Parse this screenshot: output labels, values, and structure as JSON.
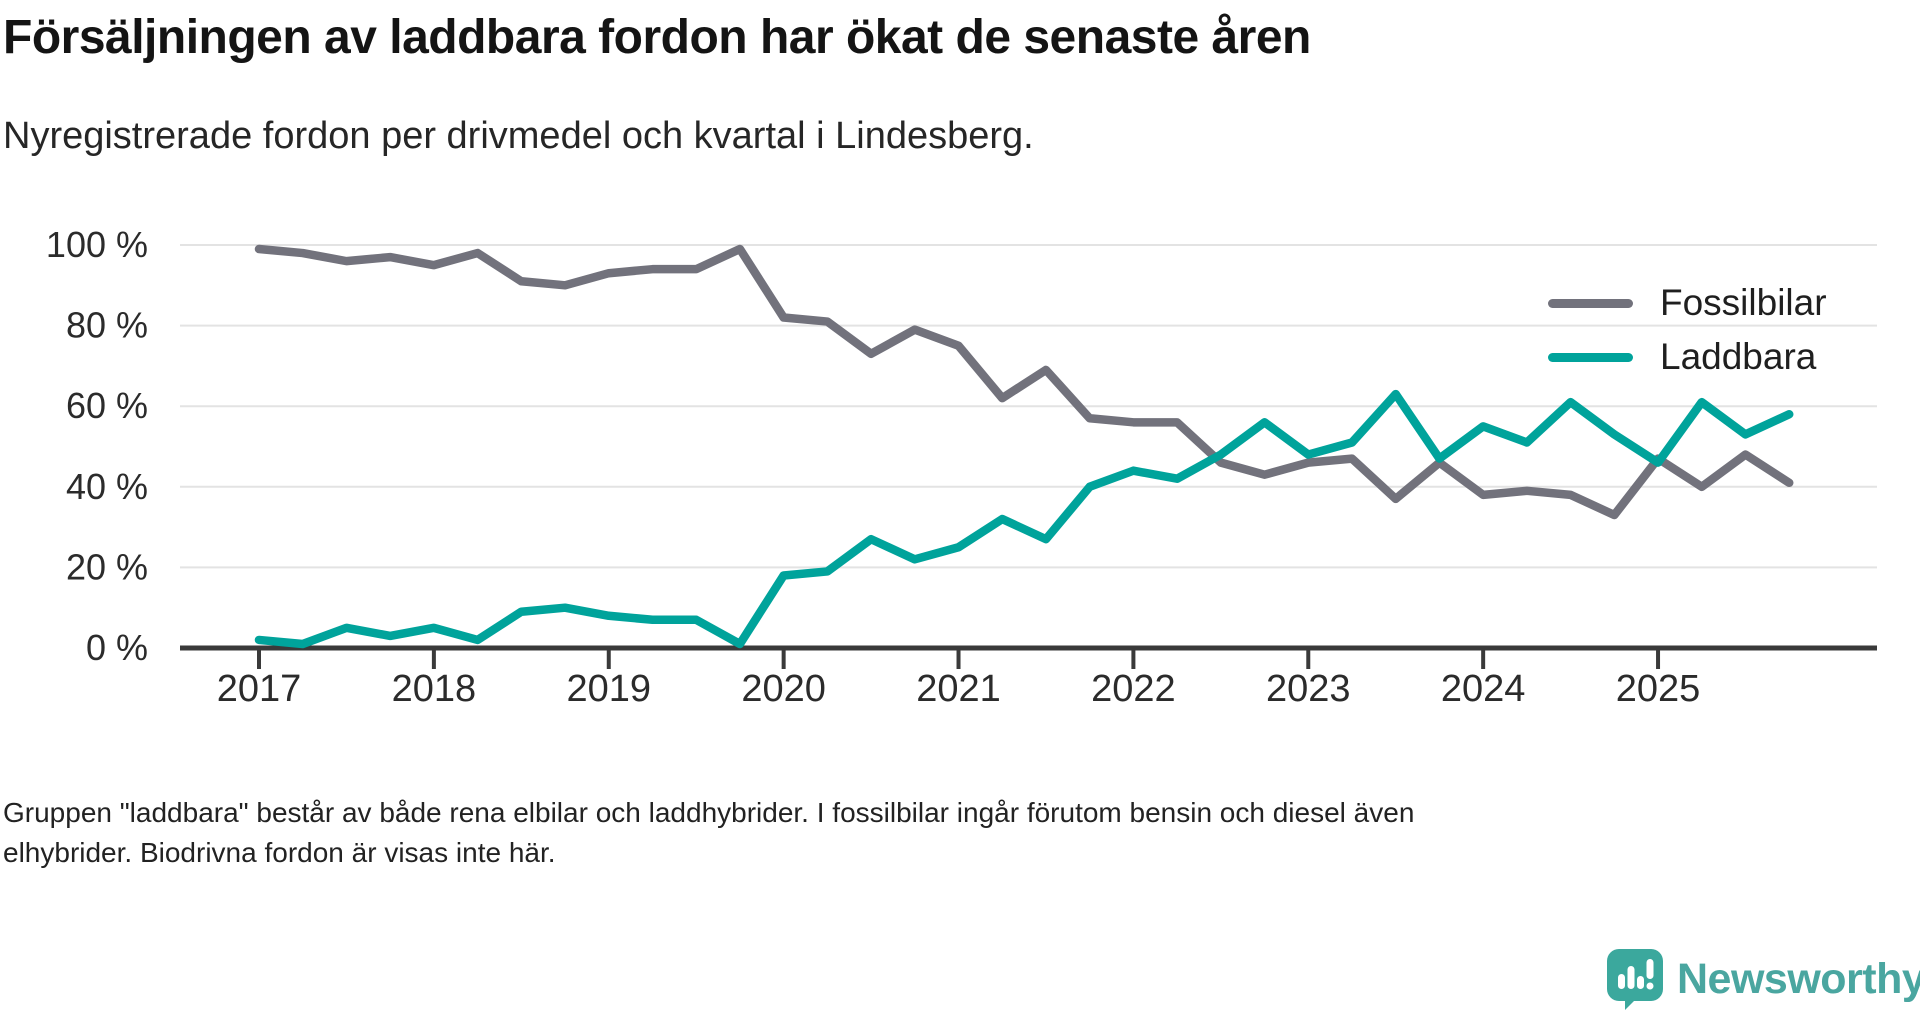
{
  "footnote": {
    "lines": [
      "Gruppen \"laddbara\" består av både rena elbilar och laddhybrider. I fossilbilar ingår förutom bensin och diesel även",
      "elhybrider. Biodrivna fordon är visas inte här."
    ]
  },
  "logo": {
    "brand": "Newsworthy",
    "color": "#4aa6a0",
    "bubble_color": "#3ba89d"
  },
  "legend": [
    {
      "label": "Fossilbilar",
      "color": "#72727c"
    },
    {
      "label": "Laddbara",
      "color": "#00a39b"
    }
  ],
  "chart_data": {
    "type": "line",
    "title": "Försäljningen av laddbara fordon har ökat de senaste åren",
    "subtitle": "Nyregistrerade fordon per drivmedel och kvartal i Lindesberg.",
    "unit": "%",
    "ylim": [
      0,
      100
    ],
    "grid": "horizontal",
    "legend_position": "inside-top-right",
    "y_ticks": [
      {
        "label": "100 %",
        "value": 100
      },
      {
        "label": "80 %",
        "value": 80
      },
      {
        "label": "60 %",
        "value": 60
      },
      {
        "label": "40 %",
        "value": 40
      },
      {
        "label": "20 %",
        "value": 20
      },
      {
        "label": "0 %",
        "value": 0
      }
    ],
    "x_ticks": [
      {
        "label": "2017",
        "quarter_index": 0
      },
      {
        "label": "2018",
        "quarter_index": 4
      },
      {
        "label": "2019",
        "quarter_index": 8
      },
      {
        "label": "2020",
        "quarter_index": 12
      },
      {
        "label": "2021",
        "quarter_index": 16
      },
      {
        "label": "2022",
        "quarter_index": 20
      },
      {
        "label": "2023",
        "quarter_index": 24
      },
      {
        "label": "2024",
        "quarter_index": 28
      },
      {
        "label": "2025",
        "quarter_index": 32
      }
    ],
    "categories": [
      "2017 Q1",
      "2017 Q2",
      "2017 Q3",
      "2017 Q4",
      "2018 Q1",
      "2018 Q2",
      "2018 Q3",
      "2018 Q4",
      "2019 Q1",
      "2019 Q2",
      "2019 Q3",
      "2019 Q4",
      "2020 Q1",
      "2020 Q2",
      "2020 Q3",
      "2020 Q4",
      "2021 Q1",
      "2021 Q2",
      "2021 Q3",
      "2021 Q4",
      "2022 Q1",
      "2022 Q2",
      "2022 Q3",
      "2022 Q4",
      "2023 Q1",
      "2023 Q2",
      "2023 Q3",
      "2023 Q4",
      "2024 Q1",
      "2024 Q2",
      "2024 Q3",
      "2024 Q4",
      "2025 Q1",
      "2025 Q2",
      "2025 Q3",
      "2025 Q4"
    ],
    "series": [
      {
        "name": "Fossilbilar",
        "color": "#72727c",
        "values": [
          99,
          98,
          96,
          97,
          95,
          98,
          91,
          90,
          93,
          94,
          94,
          99,
          82,
          81,
          73,
          79,
          75,
          62,
          69,
          57,
          56,
          56,
          46,
          43,
          46,
          47,
          37,
          46,
          38,
          39,
          38,
          33,
          47,
          40,
          48,
          41
        ]
      },
      {
        "name": "Laddbara",
        "color": "#00a39b",
        "values": [
          2,
          1,
          5,
          3,
          5,
          2,
          9,
          10,
          8,
          7,
          7,
          1,
          18,
          19,
          27,
          22,
          25,
          32,
          27,
          40,
          44,
          42,
          48,
          56,
          48,
          51,
          63,
          47,
          55,
          51,
          61,
          53,
          46,
          61,
          53,
          58
        ]
      }
    ]
  }
}
